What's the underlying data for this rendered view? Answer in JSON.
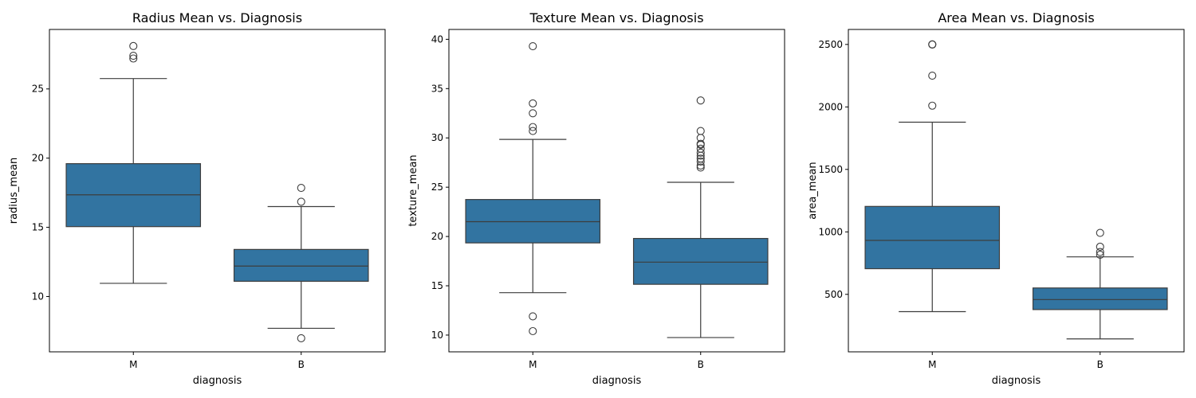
{
  "chart_data": [
    {
      "type": "box",
      "title": "Radius Mean vs. Diagnosis",
      "xlabel": "diagnosis",
      "ylabel": "radius_mean",
      "categories": [
        "M",
        "B"
      ],
      "ylim": [
        6.0,
        29.3
      ],
      "yticks": [
        10,
        15,
        20,
        25
      ],
      "box_color": "#3274a1",
      "boxes": [
        {
          "category": "M",
          "whislo": 10.95,
          "q1": 15.05,
          "median": 17.35,
          "q3": 19.6,
          "whishi": 25.75,
          "fliers": [
            27.2,
            27.4,
            28.1
          ]
        },
        {
          "category": "B",
          "whislo": 7.7,
          "q1": 11.1,
          "median": 12.2,
          "q3": 13.4,
          "whishi": 16.5,
          "fliers": [
            6.98,
            16.85,
            17.85
          ]
        }
      ]
    },
    {
      "type": "box",
      "title": "Texture Mean vs. Diagnosis",
      "xlabel": "diagnosis",
      "ylabel": "texture_mean",
      "categories": [
        "M",
        "B"
      ],
      "ylim": [
        8.3,
        41.0
      ],
      "yticks": [
        10,
        15,
        20,
        25,
        30,
        35,
        40
      ],
      "box_color": "#3274a1",
      "boxes": [
        {
          "category": "M",
          "whislo": 14.3,
          "q1": 19.35,
          "median": 21.5,
          "q3": 23.75,
          "whishi": 29.85,
          "fliers": [
            10.4,
            11.9,
            30.7,
            31.1,
            32.5,
            33.5,
            39.3
          ]
        },
        {
          "category": "B",
          "whislo": 9.75,
          "q1": 15.15,
          "median": 17.4,
          "q3": 19.8,
          "whishi": 25.5,
          "fliers": [
            27.0,
            27.2,
            27.6,
            27.9,
            28.2,
            28.5,
            28.9,
            29.3,
            29.4,
            30.0,
            30.7,
            33.8
          ]
        }
      ]
    },
    {
      "type": "box",
      "title": "Area Mean vs. Diagnosis",
      "xlabel": "diagnosis",
      "ylabel": "area_mean",
      "categories": [
        "M",
        "B"
      ],
      "ylim": [
        40,
        2620
      ],
      "yticks": [
        500,
        1000,
        1500,
        2000,
        2500
      ],
      "box_color": "#3274a1",
      "boxes": [
        {
          "category": "M",
          "whislo": 361.6,
          "q1": 705.3,
          "median": 932.0,
          "q3": 1203.8,
          "whishi": 1878.0,
          "fliers": [
            2010.0,
            2250.0,
            2499.0,
            2501.0
          ]
        },
        {
          "category": "B",
          "whislo": 143.5,
          "q1": 378.2,
          "median": 458.4,
          "q3": 551.1,
          "whishi": 800.0,
          "fliers": [
            817.0,
            839.0,
            881.0,
            992.0
          ]
        }
      ]
    }
  ]
}
